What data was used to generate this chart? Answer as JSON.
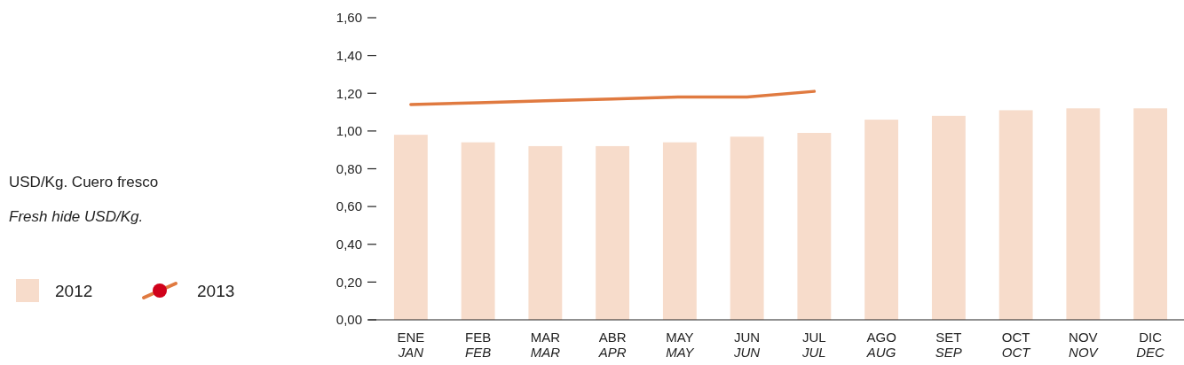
{
  "chart_data": {
    "type": "bar",
    "title": "USD/Kg. Cuero fresco",
    "subtitle": "Fresh hide USD/Kg.",
    "categories": [
      "ENE\nJAN",
      "FEB\nFEB",
      "MAR\nMAR",
      "ABR\nAPR",
      "MAY\nMAY",
      "JUN\nJUN",
      "JUL\nJUL",
      "AGO\nAUG",
      "SET\nSEP",
      "OCT\nOCT",
      "NOV\nNOV",
      "DIC\nDEC"
    ],
    "series": [
      {
        "name": "2012",
        "color": "#f7dccb",
        "values": [
          0.98,
          0.94,
          0.92,
          0.92,
          0.94,
          0.97,
          0.99,
          1.06,
          1.08,
          1.11,
          1.12,
          1.12
        ]
      },
      {
        "name": "2013",
        "type": "line",
        "color": "#e07a40",
        "values": [
          1.14,
          1.15,
          1.16,
          1.17,
          1.18,
          1.18,
          1.21,
          null,
          null,
          null,
          null,
          null
        ]
      }
    ],
    "ylim": [
      0,
      1.6
    ],
    "yticks": [
      {
        "value": 0,
        "label": "0,00"
      },
      {
        "value": 0.2,
        "label": "0,20"
      },
      {
        "value": 0.4,
        "label": "0,40"
      },
      {
        "value": 0.6,
        "label": "0,60"
      },
      {
        "value": 0.8,
        "label": "0,80"
      },
      {
        "value": 1,
        "label": "1,00"
      },
      {
        "value": 1.2,
        "label": "1,20"
      },
      {
        "value": 1.4,
        "label": "1,40"
      },
      {
        "value": 1.6,
        "label": "1,60"
      }
    ],
    "legend": "left"
  }
}
